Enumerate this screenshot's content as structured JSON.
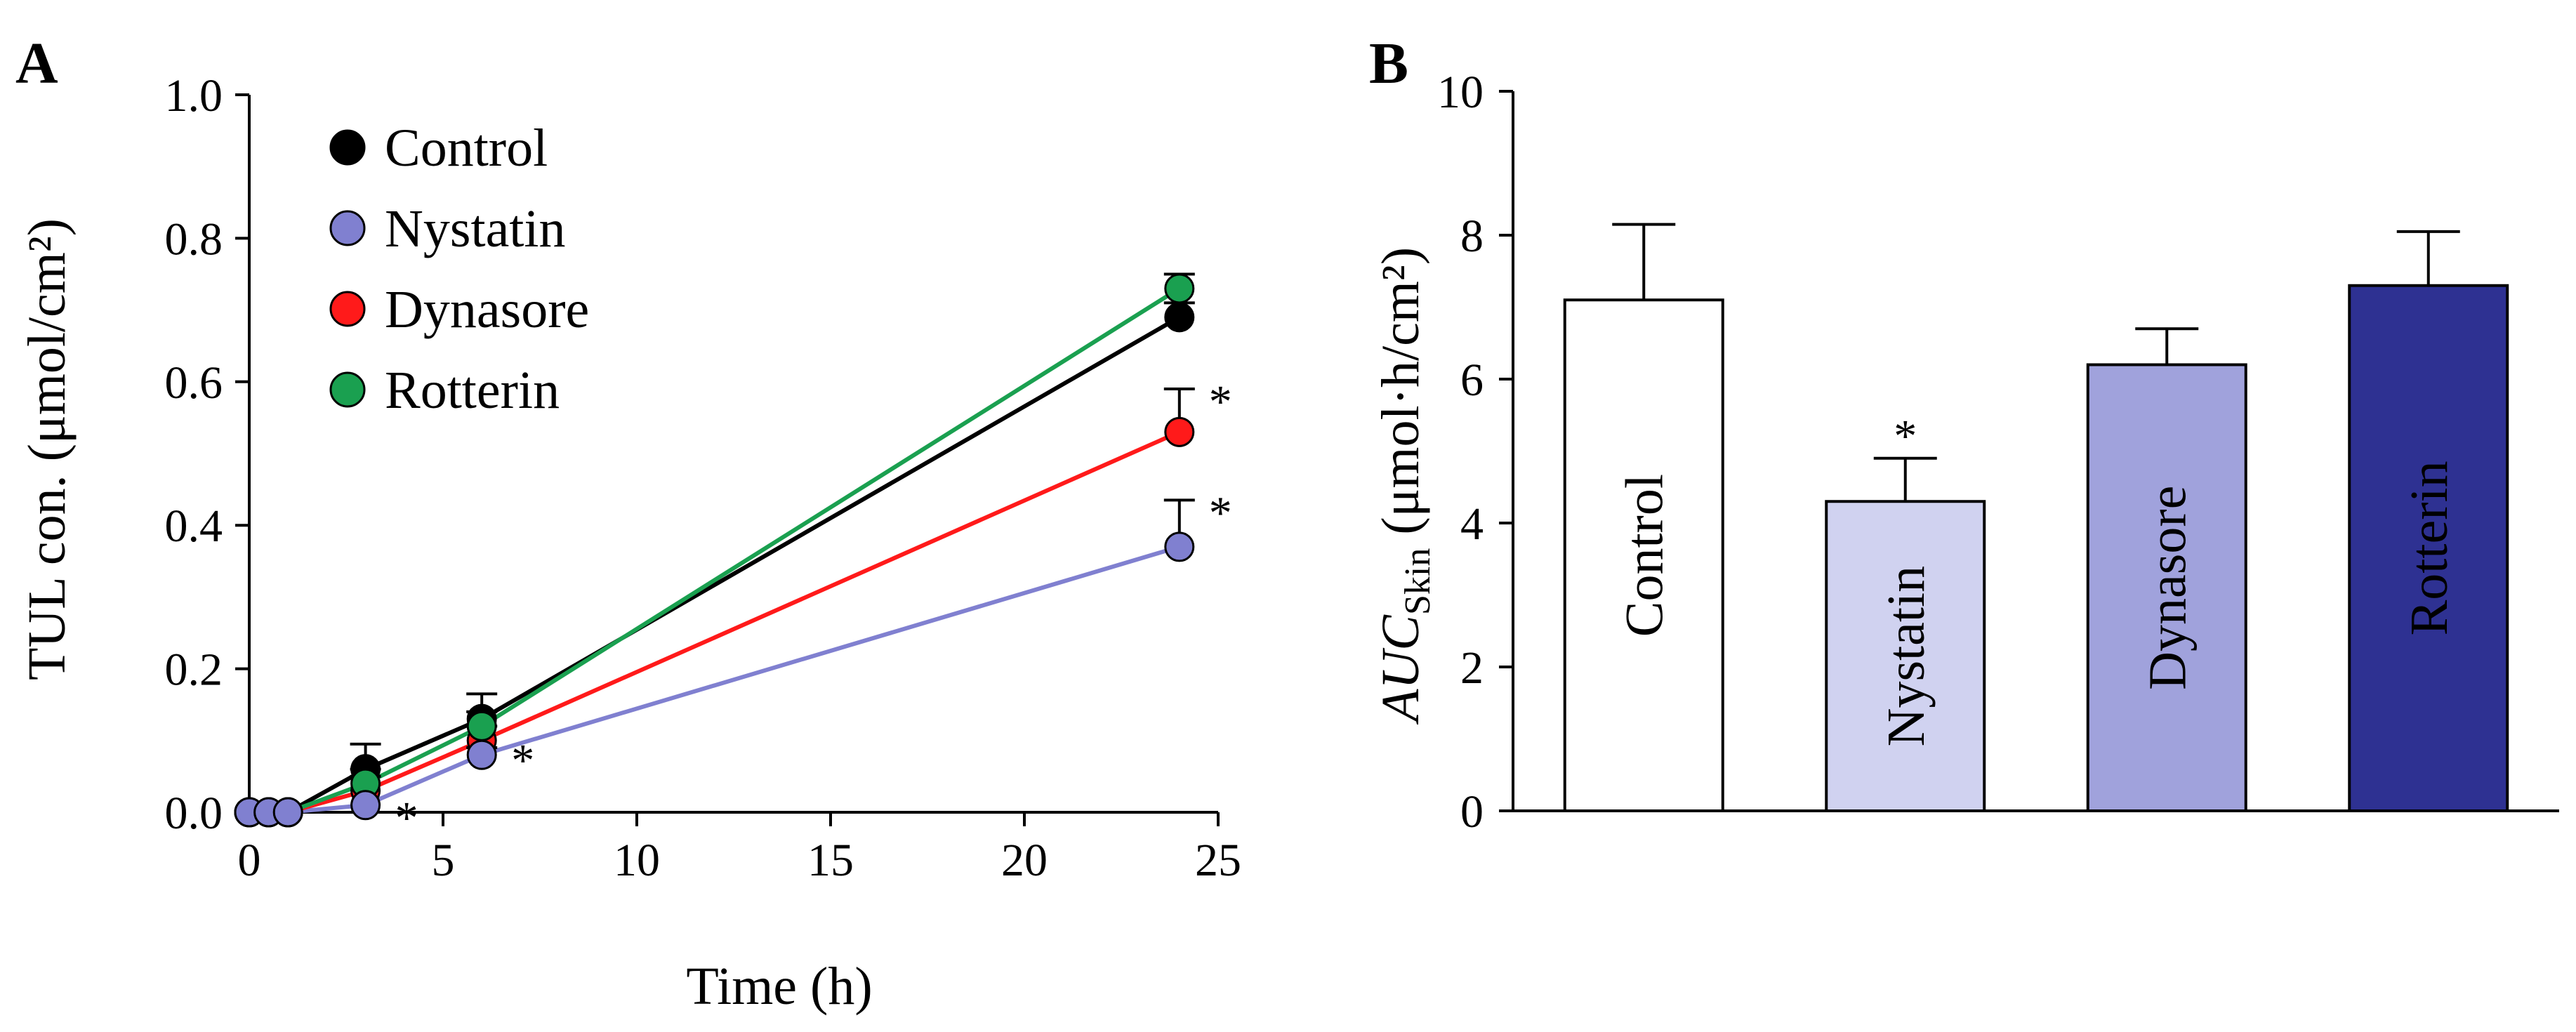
{
  "chart_data": [
    {
      "type": "line",
      "panel_label": "A",
      "xlabel": "Time (h)",
      "ylabel": "TUL con. (μmol/cm²)",
      "xlim": [
        0,
        25
      ],
      "ylim": [
        0,
        1.0
      ],
      "xticks": [
        "0",
        "5",
        "10",
        "15",
        "20",
        "25"
      ],
      "yticks": [
        "0.0",
        "0.2",
        "0.4",
        "0.6",
        "0.8",
        "1.0"
      ],
      "legend_position": "top-left",
      "x": [
        0,
        0.5,
        1,
        3,
        6,
        24
      ],
      "series": [
        {
          "name": "Control",
          "color": "#000000",
          "values": [
            0,
            0,
            0,
            0.06,
            0.13,
            0.69
          ],
          "error": [
            0,
            0,
            0,
            0.035,
            0.035,
            0.02
          ],
          "annot": [
            "",
            "",
            "",
            "",
            "",
            ""
          ]
        },
        {
          "name": "Nystatin",
          "color": "#8080d0",
          "values": [
            0,
            0,
            0,
            0.01,
            0.08,
            0.37
          ],
          "error": [
            0,
            0,
            0,
            0.0,
            0.01,
            0.065
          ],
          "annot": [
            "",
            "",
            "",
            "*",
            "*",
            "*"
          ]
        },
        {
          "name": "Dynasore",
          "color": "#ff1a1a",
          "values": [
            0,
            0,
            0,
            0.03,
            0.1,
            0.53
          ],
          "error": [
            0,
            0,
            0,
            0.02,
            0.02,
            0.06
          ],
          "annot": [
            "",
            "",
            "",
            "",
            "",
            "*"
          ]
        },
        {
          "name": "Rotterin",
          "color": "#1aa050",
          "values": [
            0,
            0,
            0,
            0.04,
            0.12,
            0.73
          ],
          "error": [
            0,
            0,
            0,
            0.02,
            0.02,
            0.02
          ],
          "annot": [
            "",
            "",
            "",
            "",
            "",
            ""
          ]
        }
      ]
    },
    {
      "type": "bar",
      "panel_label": "B",
      "ylabel_main": "AUC",
      "ylabel_sub": "Skin",
      "ylabel_rest": " (μmol·h/cm²)",
      "ylim": [
        0,
        10
      ],
      "yticks": [
        "0",
        "2",
        "4",
        "6",
        "8",
        "10"
      ],
      "categories": [
        "Control",
        "Nystatin",
        "Dynasore",
        "Rotterin"
      ],
      "values": [
        7.1,
        4.3,
        6.2,
        7.3
      ],
      "error": [
        1.05,
        0.6,
        0.5,
        0.75
      ],
      "colors": [
        "#ffffff",
        "#d0d2f0",
        "#a0a2dc",
        "#2e3192"
      ],
      "label_colors": [
        "#000000",
        "#000000",
        "#000000",
        "#ffffff"
      ],
      "annot": [
        "",
        "*",
        "",
        ""
      ]
    }
  ]
}
